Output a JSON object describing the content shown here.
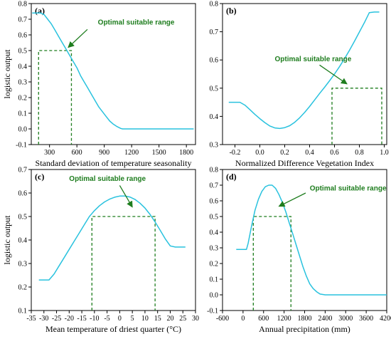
{
  "colors": {
    "curve": "#29c2de",
    "threshold": "#1e7d1e",
    "annotation": "#1e7d1e",
    "axis": "#000000"
  },
  "chart_data": [
    {
      "type": "line",
      "panel_label": "(a)",
      "xlabel": "Standard deviation of temperature seasonality",
      "ylabel": "logistic output",
      "xlim": [
        100,
        1900
      ],
      "ylim": [
        -0.1,
        0.8
      ],
      "xticks": [
        300,
        600,
        900,
        1200,
        1500,
        1800
      ],
      "yticks": [
        -0.1,
        0.0,
        0.1,
        0.2,
        0.3,
        0.4,
        0.5,
        0.6,
        0.7,
        0.8
      ],
      "ytick_labels": [
        "-0.1",
        "0.0",
        "0.1",
        "0.2",
        "0.3",
        "0.4",
        "0.5",
        "0.6",
        "0.7",
        "0.8"
      ],
      "series": [
        {
          "x": [
            110,
            160,
            200,
            240,
            280,
            320,
            360,
            400,
            440,
            480,
            520,
            560,
            600,
            640,
            680,
            720,
            760,
            800,
            840,
            880,
            920,
            960,
            1000,
            1040,
            1080,
            1100,
            1200,
            1400,
            1600,
            1880
          ],
          "y": [
            0.74,
            0.74,
            0.74,
            0.73,
            0.7,
            0.67,
            0.63,
            0.59,
            0.55,
            0.51,
            0.47,
            0.43,
            0.39,
            0.34,
            0.3,
            0.26,
            0.22,
            0.18,
            0.14,
            0.11,
            0.08,
            0.05,
            0.03,
            0.015,
            0.003,
            0.0,
            0.0,
            0.0,
            0.0,
            0.0
          ]
        }
      ],
      "threshold": 0.5,
      "suitable_range": [
        180,
        540
      ],
      "annotation": {
        "text": "Optimal suitable range",
        "text_at": [
          830,
          0.665
        ],
        "arrow_from": [
          715,
          0.635
        ],
        "arrow_to": [
          505,
          0.52
        ]
      }
    },
    {
      "type": "line",
      "panel_label": "(b)",
      "xlabel": "Normalized Difference Vegetation Index",
      "ylabel": "",
      "xlim": [
        -0.3,
        1.02
      ],
      "ylim": [
        0.3,
        0.8
      ],
      "xticks": [
        -0.2,
        0.0,
        0.2,
        0.4,
        0.6,
        0.8,
        1.0
      ],
      "xtick_labels": [
        "-0.2",
        "0.0",
        "0.2",
        "0.4",
        "0.6",
        "0.8",
        "1.0"
      ],
      "yticks": [
        0.3,
        0.4,
        0.5,
        0.6,
        0.7,
        0.8
      ],
      "ytick_labels": [
        "0.3",
        "0.4",
        "0.5",
        "0.6",
        "0.7",
        "0.8"
      ],
      "series": [
        {
          "x": [
            -0.25,
            -0.2,
            -0.16,
            -0.12,
            -0.08,
            -0.04,
            0.0,
            0.04,
            0.08,
            0.12,
            0.16,
            0.2,
            0.24,
            0.28,
            0.32,
            0.36,
            0.4,
            0.44,
            0.48,
            0.52,
            0.56,
            0.6,
            0.64,
            0.68,
            0.72,
            0.76,
            0.8,
            0.84,
            0.88,
            0.92,
            0.96
          ],
          "y": [
            0.45,
            0.45,
            0.45,
            0.44,
            0.424,
            0.407,
            0.392,
            0.378,
            0.366,
            0.359,
            0.357,
            0.36,
            0.367,
            0.379,
            0.395,
            0.414,
            0.435,
            0.458,
            0.481,
            0.503,
            0.526,
            0.55,
            0.576,
            0.604,
            0.634,
            0.666,
            0.699,
            0.732,
            0.768,
            0.77,
            0.77
          ]
        }
      ],
      "threshold": 0.5,
      "suitable_range": [
        0.58,
        0.98
      ],
      "annotation": {
        "text": "Optimal suitable range",
        "text_at": [
          0.12,
          0.595
        ],
        "arrow_from": [
          0.48,
          0.582
        ],
        "arrow_to": [
          0.7,
          0.515
        ]
      }
    },
    {
      "type": "line",
      "panel_label": "(c)",
      "xlabel": "Mean temperature of driest quarter (°C)",
      "ylabel": "logistic output",
      "xlim": [
        -35,
        30
      ],
      "ylim": [
        0.1,
        0.7
      ],
      "xticks": [
        -35,
        -30,
        -25,
        -20,
        -15,
        -10,
        -5,
        0,
        5,
        10,
        15,
        20,
        25,
        30
      ],
      "xtick_labels": [
        "-35",
        "-30",
        "-25",
        "-20",
        "-15",
        "-10",
        "-5",
        "0",
        "5",
        "10",
        "15",
        "20",
        "25",
        "30"
      ],
      "yticks": [
        0.1,
        0.2,
        0.3,
        0.4,
        0.5,
        0.6,
        0.7
      ],
      "ytick_labels": [
        "0.1",
        "0.2",
        "0.3",
        "0.4",
        "0.5",
        "0.6",
        "0.7"
      ],
      "series": [
        {
          "x": [
            -32,
            -30,
            -28,
            -26,
            -24,
            -22,
            -20,
            -18,
            -16,
            -14,
            -12,
            -10,
            -8,
            -6,
            -4,
            -2,
            0,
            2,
            4,
            6,
            8,
            10,
            12,
            14,
            16,
            18,
            20,
            22,
            24,
            26
          ],
          "y": [
            0.23,
            0.23,
            0.23,
            0.255,
            0.29,
            0.325,
            0.36,
            0.395,
            0.43,
            0.465,
            0.5,
            0.525,
            0.546,
            0.562,
            0.574,
            0.582,
            0.587,
            0.587,
            0.583,
            0.573,
            0.557,
            0.536,
            0.509,
            0.477,
            0.442,
            0.405,
            0.375,
            0.37,
            0.37,
            0.37
          ]
        }
      ],
      "threshold": 0.5,
      "suitable_range": [
        -11,
        14
      ],
      "annotation": {
        "text": "Optimal suitable range",
        "text_at": [
          -20,
          0.652
        ],
        "arrow_from": [
          0,
          0.632
        ],
        "arrow_to": [
          5,
          0.54
        ]
      }
    },
    {
      "type": "line",
      "panel_label": "(d)",
      "xlabel": "Annual precipitation (mm)",
      "ylabel": "",
      "xlim": [
        -600,
        4200
      ],
      "ylim": [
        -0.1,
        0.8
      ],
      "xticks": [
        -600,
        0,
        600,
        1200,
        1800,
        2400,
        3000,
        3600,
        4200
      ],
      "xtick_labels": [
        "-600",
        "0",
        "600",
        "1200",
        "1800",
        "2400",
        "3000",
        "3600",
        "4200"
      ],
      "yticks": [
        -0.1,
        0.0,
        0.1,
        0.2,
        0.3,
        0.4,
        0.5,
        0.6,
        0.7,
        0.8
      ],
      "ytick_labels": [
        "-0.1",
        "0.0",
        "0.1",
        "0.2",
        "0.3",
        "0.4",
        "0.5",
        "0.6",
        "0.7",
        "0.8"
      ],
      "series": [
        {
          "x": [
            -200,
            0,
            100,
            150,
            250,
            350,
            450,
            550,
            650,
            750,
            850,
            950,
            1050,
            1150,
            1250,
            1350,
            1450,
            1550,
            1650,
            1750,
            1850,
            1950,
            2050,
            2150,
            2250,
            2400,
            2600,
            3000,
            3600,
            4200
          ],
          "y": [
            0.29,
            0.29,
            0.29,
            0.33,
            0.44,
            0.54,
            0.61,
            0.66,
            0.69,
            0.7,
            0.7,
            0.68,
            0.64,
            0.59,
            0.53,
            0.46,
            0.39,
            0.32,
            0.25,
            0.18,
            0.12,
            0.07,
            0.04,
            0.02,
            0.005,
            0.0,
            0.0,
            0.0,
            0.0,
            0.0
          ]
        }
      ],
      "threshold": 0.5,
      "suitable_range": [
        300,
        1400
      ],
      "annotation": {
        "text": "Optimal suitable range",
        "text_at": [
          1950,
          0.665
        ],
        "arrow_from": [
          1830,
          0.65
        ],
        "arrow_to": [
          1050,
          0.565
        ]
      }
    }
  ]
}
